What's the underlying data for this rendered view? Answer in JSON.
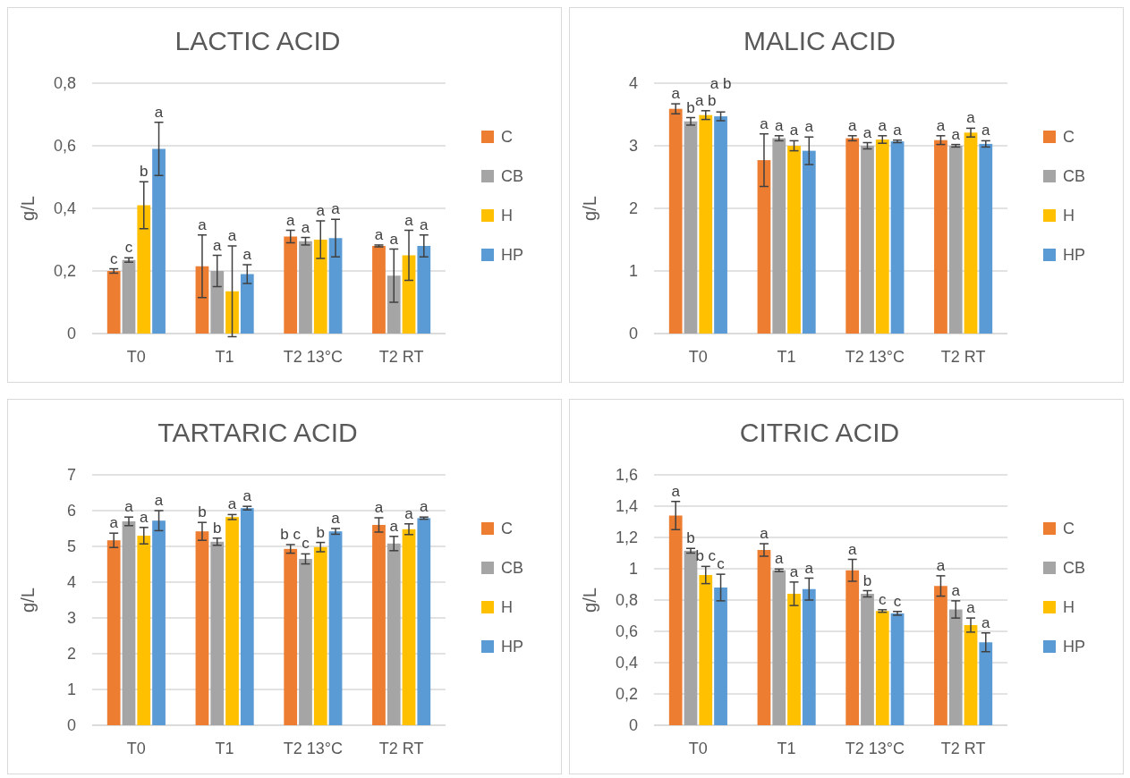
{
  "chart_data": [
    {
      "type": "bar",
      "title": "LACTIC ACID",
      "ylabel": "g/L",
      "categories": [
        "T0",
        "T1",
        "T2 13°C",
        "T2 RT"
      ],
      "ylim": [
        0,
        0.8
      ],
      "yticks": [
        0,
        {
          "value": 0.2,
          "label": "0,2"
        },
        {
          "value": 0.4,
          "label": "0,4"
        },
        {
          "value": 0.6,
          "label": "0,6"
        },
        {
          "value": 0.8,
          "label": "0,8"
        }
      ],
      "grid": "y",
      "legend": "right",
      "series": [
        {
          "name": "C",
          "color": "#ed7d31",
          "values": [
            0.2,
            0.215,
            0.31,
            0.28
          ],
          "errors": [
            0.007,
            0.1,
            0.02,
            0.003
          ],
          "value_labels": [
            "c",
            "a",
            "a",
            "a"
          ]
        },
        {
          "name": "CB",
          "color": "#a5a5a5",
          "values": [
            0.235,
            0.2,
            0.295,
            0.185
          ],
          "errors": [
            0.007,
            0.05,
            0.012,
            0.085
          ],
          "value_labels": [
            "c",
            "a",
            "a",
            "a"
          ]
        },
        {
          "name": "H",
          "color": "#ffc000",
          "values": [
            0.41,
            0.135,
            0.3,
            0.25
          ],
          "errors": [
            0.075,
            0.145,
            0.06,
            0.08
          ],
          "value_labels": [
            "b",
            "a",
            "a",
            "a"
          ]
        },
        {
          "name": "HP",
          "color": "#5b9bd5",
          "values": [
            0.59,
            0.19,
            0.305,
            0.28
          ],
          "errors": [
            0.085,
            0.03,
            0.06,
            0.035
          ],
          "value_labels": [
            "a",
            "a",
            "a",
            "a"
          ]
        }
      ]
    },
    {
      "type": "bar",
      "title": "MALIC ACID",
      "ylabel": "g/L",
      "categories": [
        "T0",
        "T1",
        "T2 13°C",
        "T2 RT"
      ],
      "ylim": [
        0,
        4
      ],
      "yticks": [
        0,
        1,
        2,
        3,
        4
      ],
      "grid": "y",
      "legend": "right",
      "series": [
        {
          "name": "C",
          "color": "#ed7d31",
          "values": [
            3.59,
            2.77,
            3.12,
            3.09
          ],
          "errors": [
            0.08,
            0.42,
            0.04,
            0.07
          ],
          "value_labels": [
            "a",
            "a",
            "a",
            "a"
          ]
        },
        {
          "name": "CB",
          "color": "#a5a5a5",
          "values": [
            3.39,
            3.12,
            3.0,
            3.0
          ],
          "errors": [
            0.06,
            0.04,
            0.05,
            0.02
          ],
          "value_labels": [
            "b",
            "a",
            "a",
            "a"
          ]
        },
        {
          "name": "H",
          "color": "#ffc000",
          "values": [
            3.49,
            3.0,
            3.1,
            3.21
          ],
          "errors": [
            0.07,
            0.08,
            0.06,
            0.07
          ],
          "value_labels": [
            "a b",
            "a",
            "a",
            "a"
          ]
        },
        {
          "name": "HP",
          "color": "#5b9bd5",
          "values": [
            3.47,
            2.92,
            3.07,
            3.03
          ],
          "errors": [
            0.07,
            0.22,
            0.02,
            0.05
          ],
          "value_labels": [
            "a b",
            "a",
            "a",
            "a"
          ]
        }
      ]
    },
    {
      "type": "bar",
      "title": "TARTARIC ACID",
      "ylabel": "g/L",
      "categories": [
        "T0",
        "T1",
        "T2 13°C",
        "T2 RT"
      ],
      "ylim": [
        0,
        7
      ],
      "yticks": [
        0,
        1,
        2,
        3,
        4,
        5,
        6,
        7
      ],
      "grid": "y",
      "legend": "right",
      "series": [
        {
          "name": "C",
          "color": "#ed7d31",
          "values": [
            5.17,
            5.42,
            4.93,
            5.6
          ],
          "errors": [
            0.2,
            0.25,
            0.12,
            0.2
          ],
          "value_labels": [
            "a",
            "b",
            "b c",
            "a"
          ]
        },
        {
          "name": "CB",
          "color": "#a5a5a5",
          "values": [
            5.7,
            5.13,
            4.65,
            5.08
          ],
          "errors": [
            0.12,
            0.1,
            0.14,
            0.2
          ],
          "value_labels": [
            "a",
            "b",
            "c",
            "a"
          ]
        },
        {
          "name": "H",
          "color": "#ffc000",
          "values": [
            5.3,
            5.82,
            4.98,
            5.48
          ],
          "errors": [
            0.23,
            0.07,
            0.13,
            0.15
          ],
          "value_labels": [
            "a",
            "a",
            "b",
            "a"
          ]
        },
        {
          "name": "HP",
          "color": "#5b9bd5",
          "values": [
            5.72,
            6.07,
            5.42,
            5.79
          ],
          "errors": [
            0.28,
            0.05,
            0.08,
            0.03
          ],
          "value_labels": [
            "a",
            "a",
            "a",
            "a"
          ]
        }
      ]
    },
    {
      "type": "bar",
      "title": "CITRIC ACID",
      "ylabel": "g/L",
      "categories": [
        "T0",
        "T1",
        "T2 13°C",
        "T2 RT"
      ],
      "ylim": [
        0,
        1.6
      ],
      "yticks": [
        0,
        {
          "value": 0.2,
          "label": "0,2"
        },
        {
          "value": 0.4,
          "label": "0,4"
        },
        {
          "value": 0.6,
          "label": "0,6"
        },
        {
          "value": 0.8,
          "label": "0,8"
        },
        1,
        {
          "value": 1.2,
          "label": "1,2"
        },
        {
          "value": 1.4,
          "label": "1,4"
        },
        {
          "value": 1.6,
          "label": "1,6"
        }
      ],
      "grid": "y",
      "legend": "right",
      "series": [
        {
          "name": "C",
          "color": "#ed7d31",
          "values": [
            1.34,
            1.12,
            0.99,
            0.89
          ],
          "errors": [
            0.09,
            0.04,
            0.07,
            0.065
          ],
          "value_labels": [
            "a",
            "a",
            "a",
            "a"
          ]
        },
        {
          "name": "CB",
          "color": "#a5a5a5",
          "values": [
            1.115,
            0.99,
            0.84,
            0.74
          ],
          "errors": [
            0.015,
            0.008,
            0.02,
            0.055
          ],
          "value_labels": [
            "b",
            "a",
            "b",
            "a"
          ]
        },
        {
          "name": "H",
          "color": "#ffc000",
          "values": [
            0.96,
            0.84,
            0.73,
            0.64
          ],
          "errors": [
            0.055,
            0.075,
            0.008,
            0.045
          ],
          "value_labels": [
            "b c",
            "a",
            "c",
            "a"
          ]
        },
        {
          "name": "HP",
          "color": "#5b9bd5",
          "values": [
            0.88,
            0.87,
            0.715,
            0.53
          ],
          "errors": [
            0.085,
            0.07,
            0.012,
            0.06
          ],
          "value_labels": [
            "c",
            "a",
            "c",
            "a"
          ]
        }
      ]
    }
  ]
}
